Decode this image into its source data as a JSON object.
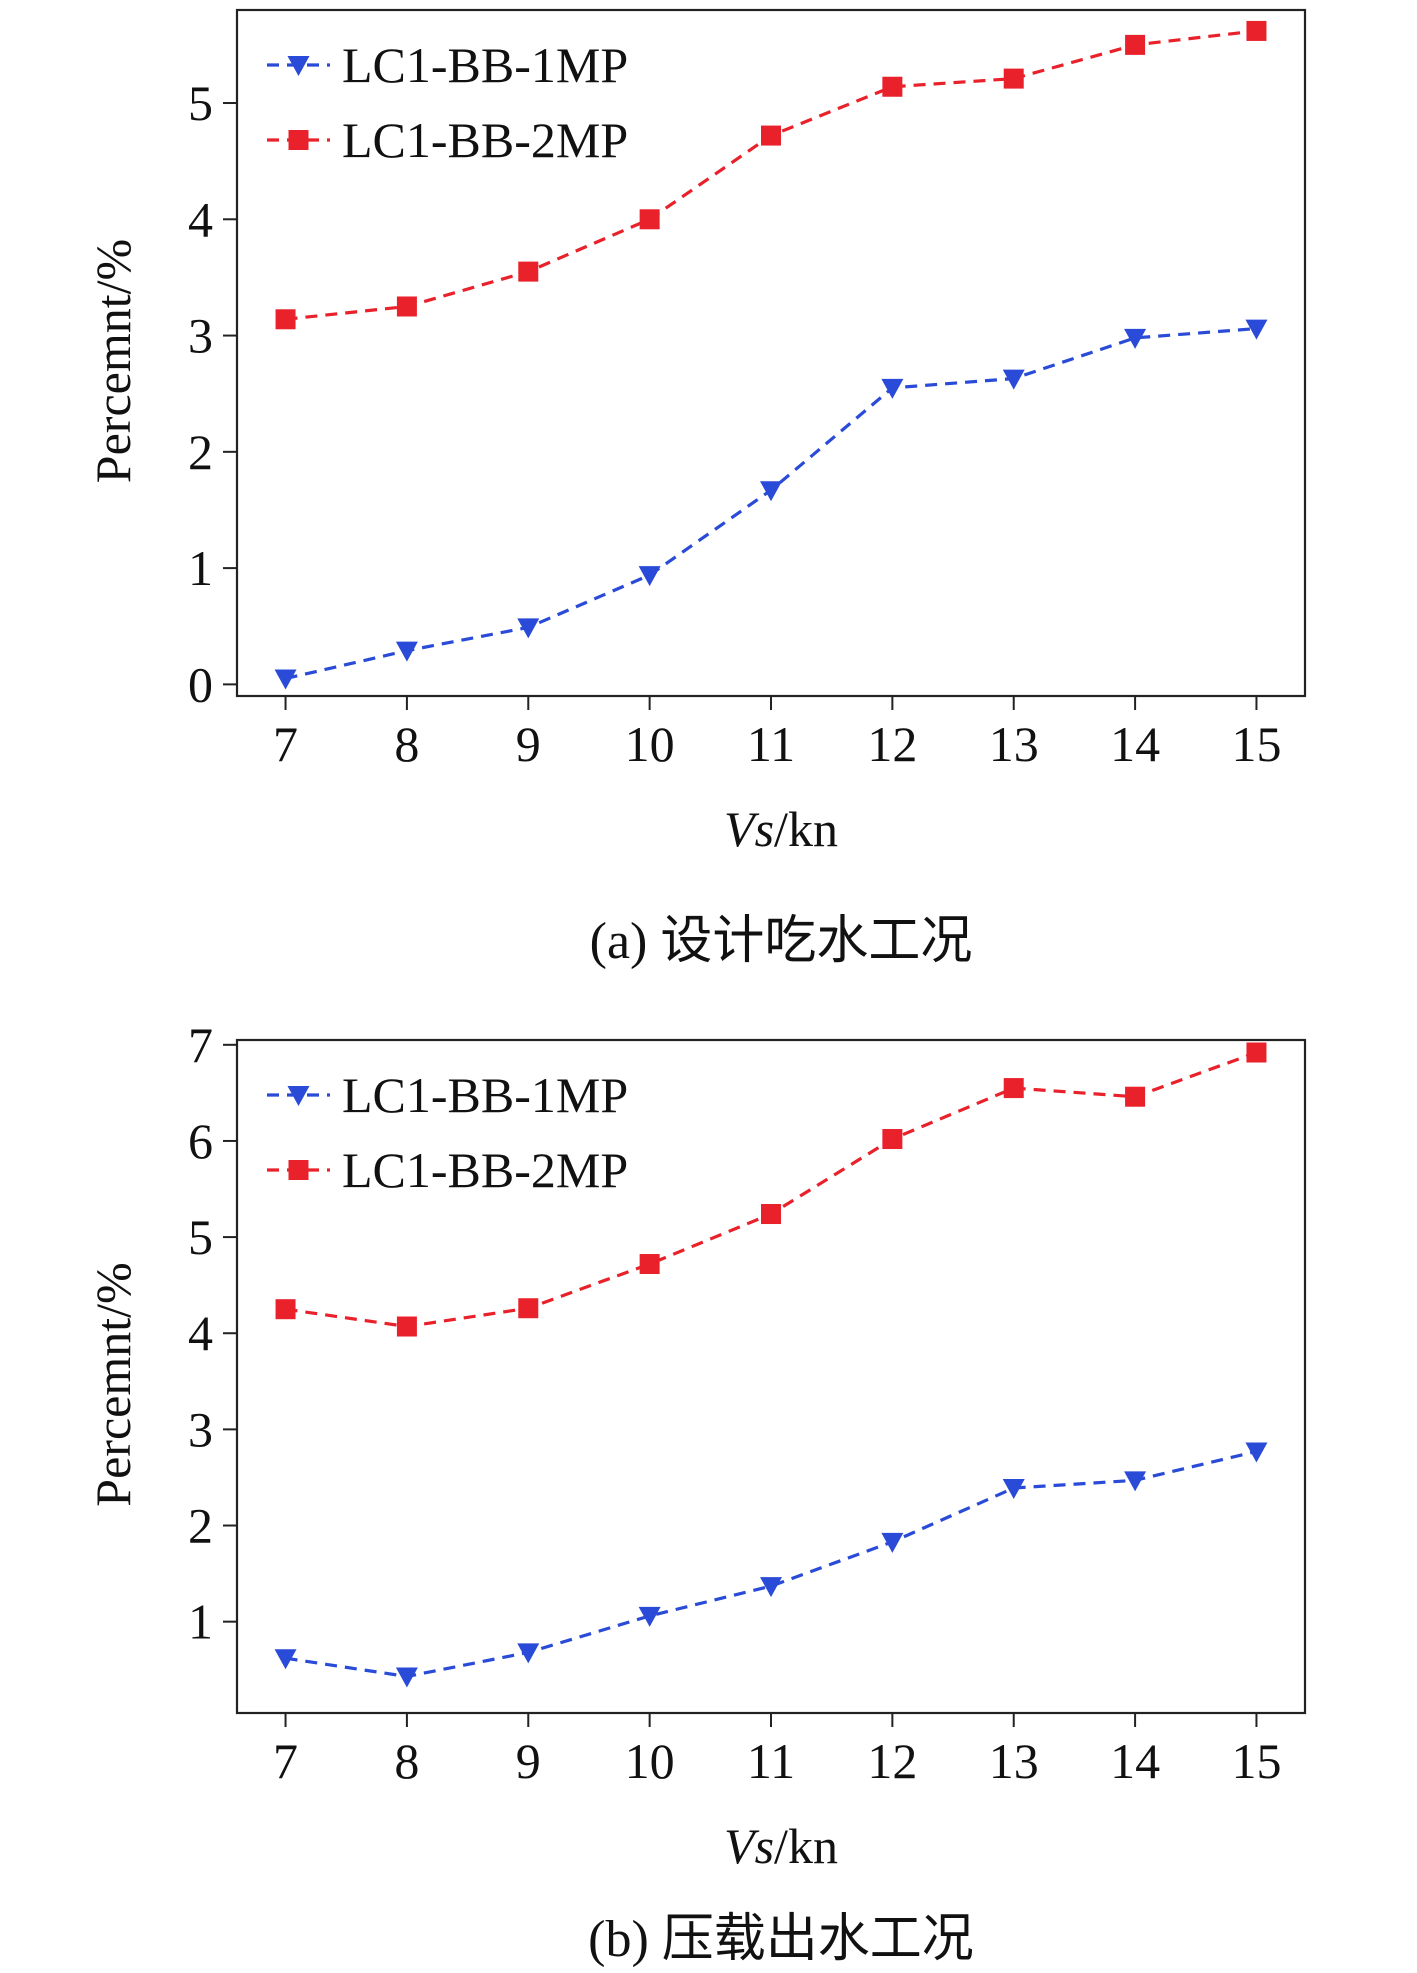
{
  "chart_data": [
    {
      "type": "line",
      "caption": "(a) 设计吃水工况",
      "xlabel_italic": "Vs",
      "xlabel_unit": "/kn",
      "ylabel": "Percemnt/%",
      "x": [
        7,
        8,
        9,
        10,
        11,
        12,
        13,
        14,
        15
      ],
      "xlim": [
        6.6,
        15.4
      ],
      "ylim": [
        -0.1,
        5.8
      ],
      "yticks": [
        0,
        1,
        2,
        3,
        4,
        5
      ],
      "grid": false,
      "legend_position": "top-left",
      "series": [
        {
          "name": "LC1-BB-1MP",
          "color": "#2a4bd7",
          "marker": "triangle-down",
          "values": [
            0.05,
            0.29,
            0.49,
            0.94,
            1.67,
            2.55,
            2.63,
            2.98,
            3.06
          ]
        },
        {
          "name": "LC1-BB-2MP",
          "color": "#e8212b",
          "marker": "square",
          "values": [
            3.14,
            3.25,
            3.55,
            4.0,
            4.72,
            5.14,
            5.21,
            5.5,
            5.62
          ]
        }
      ]
    },
    {
      "type": "line",
      "caption": "(b) 压载出水工况",
      "xlabel_italic": "Vs",
      "xlabel_unit": "/kn",
      "ylabel": "Percemnt/%",
      "x": [
        7,
        8,
        9,
        10,
        11,
        12,
        13,
        14,
        15
      ],
      "xlim": [
        6.6,
        15.4
      ],
      "ylim": [
        0.05,
        7.05
      ],
      "yticks": [
        1,
        2,
        3,
        4,
        5,
        6,
        7
      ],
      "grid": false,
      "legend_position": "top-left",
      "series": [
        {
          "name": "LC1-BB-1MP",
          "color": "#2a4bd7",
          "marker": "triangle-down",
          "values": [
            0.62,
            0.43,
            0.68,
            1.06,
            1.37,
            1.83,
            2.39,
            2.47,
            2.77
          ]
        },
        {
          "name": "LC1-BB-2MP",
          "color": "#e8212b",
          "marker": "square",
          "values": [
            4.25,
            4.07,
            4.26,
            4.72,
            5.24,
            6.02,
            6.55,
            6.46,
            6.92
          ]
        }
      ]
    }
  ]
}
